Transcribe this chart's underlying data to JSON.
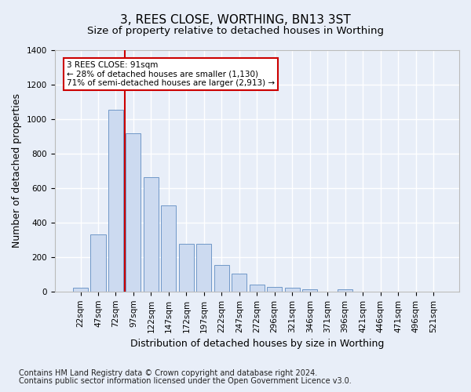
{
  "title": "3, REES CLOSE, WORTHING, BN13 3ST",
  "subtitle": "Size of property relative to detached houses in Worthing",
  "xlabel": "Distribution of detached houses by size in Worthing",
  "ylabel": "Number of detached properties",
  "footnote1": "Contains HM Land Registry data © Crown copyright and database right 2024.",
  "footnote2": "Contains public sector information licensed under the Open Government Licence v3.0.",
  "bin_labels": [
    "22sqm",
    "47sqm",
    "72sqm",
    "97sqm",
    "122sqm",
    "147sqm",
    "172sqm",
    "197sqm",
    "222sqm",
    "247sqm",
    "272sqm",
    "296sqm",
    "321sqm",
    "346sqm",
    "371sqm",
    "396sqm",
    "421sqm",
    "446sqm",
    "471sqm",
    "496sqm",
    "521sqm"
  ],
  "bar_heights": [
    22,
    330,
    1055,
    920,
    665,
    500,
    275,
    275,
    155,
    105,
    38,
    25,
    20,
    15,
    0,
    12,
    0,
    0,
    0,
    0,
    0
  ],
  "bar_color": "#ccdaf0",
  "bar_edge_color": "#7098c8",
  "vline_color": "#cc0000",
  "annotation_text": "3 REES CLOSE: 91sqm\n← 28% of detached houses are smaller (1,130)\n71% of semi-detached houses are larger (2,913) →",
  "annotation_box_color": "#ffffff",
  "annotation_box_edge": "#cc0000",
  "ylim": [
    0,
    1400
  ],
  "fig_bg_color": "#e8eef8",
  "plot_bg_color": "#e8eef8",
  "grid_color": "#ffffff",
  "title_fontsize": 11,
  "subtitle_fontsize": 9.5,
  "axis_label_fontsize": 9,
  "tick_fontsize": 7.5,
  "annotation_fontsize": 7.5,
  "footnote_fontsize": 7
}
